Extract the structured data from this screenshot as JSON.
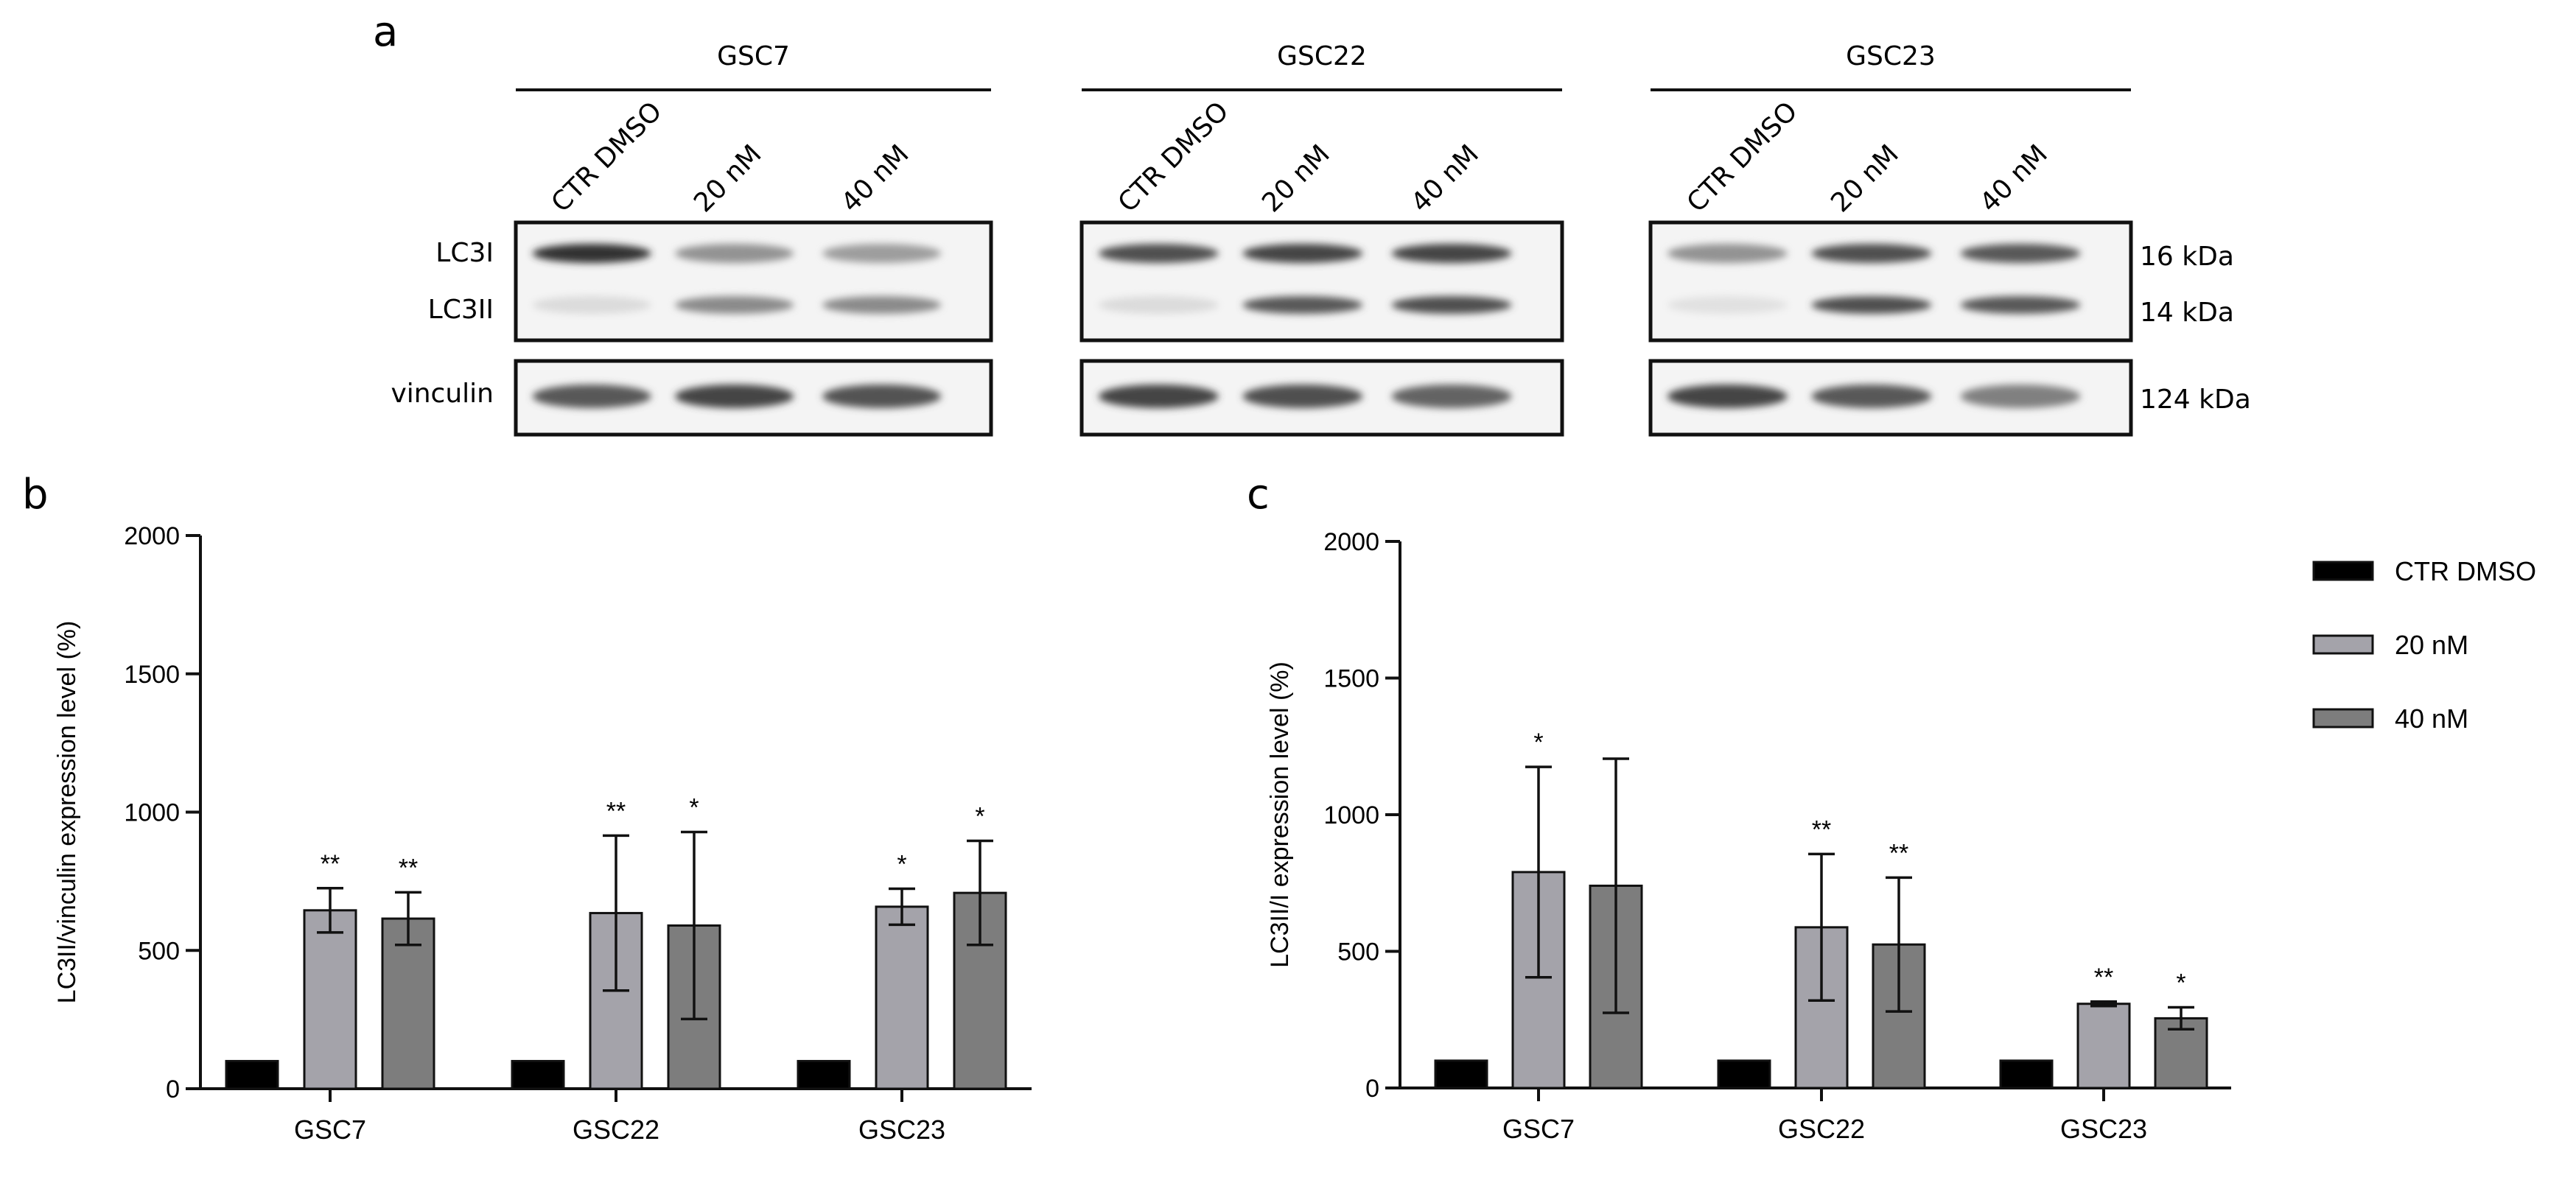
{
  "panel_labels": {
    "a": "a",
    "b": "b",
    "c": "c"
  },
  "blot": {
    "groups": [
      "GSC7",
      "GSC22",
      "GSC23"
    ],
    "lanes": [
      "CTR DMSO",
      "20 nM",
      "40 nM"
    ],
    "row_labels": {
      "lc3i": "LC3I",
      "lc3ii": "LC3II",
      "vinculin": "vinculin"
    },
    "mw_markers": [
      "16 kDa",
      "14 kDa",
      "124 kDa"
    ],
    "band_intensity": {
      "GSC7": {
        "lc3i": [
          0.95,
          0.45,
          0.4
        ],
        "lc3ii": [
          0.08,
          0.5,
          0.5
        ],
        "vinculin": [
          0.75,
          0.85,
          0.78
        ]
      },
      "GSC22": {
        "lc3i": [
          0.8,
          0.85,
          0.85
        ],
        "lc3ii": [
          0.08,
          0.75,
          0.8
        ],
        "vinculin": [
          0.85,
          0.8,
          0.7
        ]
      },
      "GSC23": {
        "lc3i": [
          0.45,
          0.8,
          0.75
        ],
        "lc3ii": [
          0.05,
          0.8,
          0.75
        ],
        "vinculin": [
          0.85,
          0.75,
          0.55
        ]
      }
    }
  },
  "legend": {
    "items": [
      "CTR DMSO",
      "20 nM",
      "40 nM"
    ]
  },
  "colors": {
    "ctr": "#000000",
    "nm20": "#a4a3aa",
    "nm40": "#7d7d7d"
  },
  "chart_data": [
    {
      "panel": "b",
      "type": "bar",
      "ylabel": "LC3II/vinculin expression level (%)",
      "ylim": [
        0,
        2000
      ],
      "yticks": [
        0,
        500,
        1000,
        1500,
        2000
      ],
      "categories": [
        "GSC7",
        "GSC22",
        "GSC23"
      ],
      "series": [
        {
          "name": "CTR DMSO",
          "values": [
            100,
            100,
            100
          ],
          "err": [
            0,
            0,
            0
          ],
          "sig": [
            "",
            "",
            ""
          ]
        },
        {
          "name": "20 nM",
          "values": [
            645,
            635,
            658
          ],
          "err": [
            80,
            280,
            65
          ],
          "sig": [
            "**",
            "**",
            "*"
          ]
        },
        {
          "name": "40 nM",
          "values": [
            615,
            590,
            708
          ],
          "err": [
            95,
            338,
            188
          ],
          "sig": [
            "**",
            "*",
            "*"
          ]
        }
      ]
    },
    {
      "panel": "c",
      "type": "bar",
      "ylabel": "LC3II/I expression level (%)",
      "ylim": [
        0,
        2000
      ],
      "yticks": [
        0,
        500,
        1000,
        1500,
        2000
      ],
      "categories": [
        "GSC7",
        "GSC22",
        "GSC23"
      ],
      "series": [
        {
          "name": "CTR DMSO",
          "values": [
            100,
            100,
            100
          ],
          "err": [
            0,
            0,
            0
          ],
          "sig": [
            "",
            "",
            ""
          ]
        },
        {
          "name": "20 nM",
          "values": [
            790,
            588,
            308
          ],
          "err": [
            385,
            268,
            8
          ],
          "sig": [
            "*",
            "**",
            "**"
          ]
        },
        {
          "name": "40 nM",
          "values": [
            740,
            525,
            255
          ],
          "err": [
            465,
            245,
            40
          ],
          "sig": [
            "",
            "**",
            "*"
          ]
        }
      ]
    }
  ]
}
